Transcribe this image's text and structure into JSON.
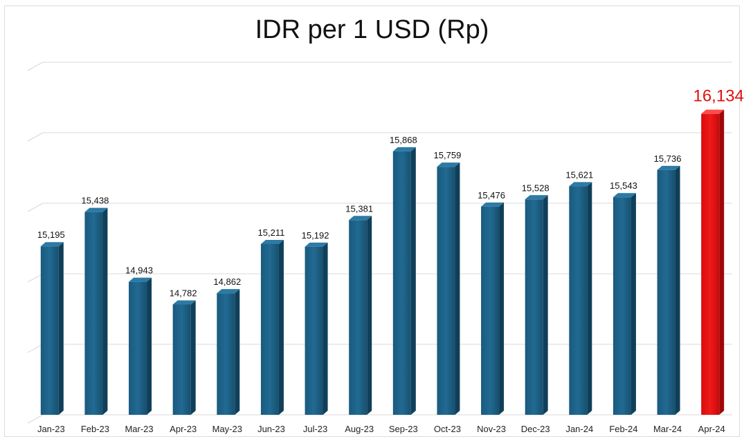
{
  "chart_data": {
    "type": "bar",
    "title": "IDR per 1 USD (Rp)",
    "xlabel": "",
    "ylabel": "",
    "categories": [
      "Jan-23",
      "Feb-23",
      "Mar-23",
      "Apr-23",
      "May-23",
      "Jun-23",
      "Jul-23",
      "Aug-23",
      "Sep-23",
      "Oct-23",
      "Nov-23",
      "Dec-23",
      "Jan-24",
      "Feb-24",
      "Mar-24",
      "Apr-24"
    ],
    "values": [
      15195,
      15438,
      14943,
      14782,
      14862,
      15211,
      15192,
      15381,
      15868,
      15759,
      15476,
      15528,
      15621,
      15543,
      15736,
      16134
    ],
    "data_labels": [
      "15,195",
      "15,438",
      "14,943",
      "14,782",
      "14,862",
      "15,211",
      "15,192",
      "15,381",
      "15,868",
      "15,759",
      "15,476",
      "15,528",
      "15,621",
      "15,543",
      "15,736",
      "16,134"
    ],
    "ylim": [
      14000,
      16500
    ],
    "grid": true,
    "legend": "none",
    "colors": {
      "bar": "#1b5c80",
      "highlight": "#e31212"
    },
    "highlight_index": 15
  }
}
